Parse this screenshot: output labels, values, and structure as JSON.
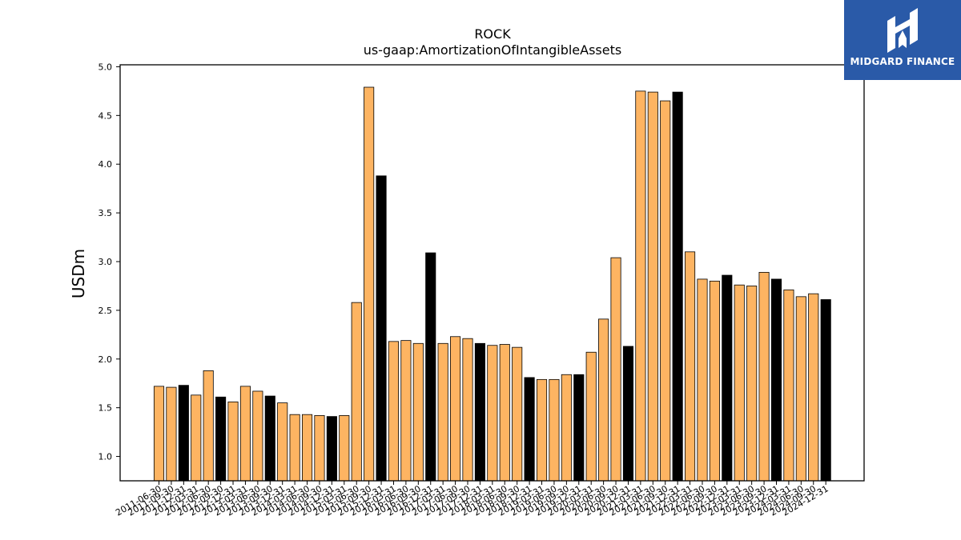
{
  "brand": {
    "name": "MIDGARD FINANCE",
    "logo_icon": "midgard-logo-icon",
    "background": "#2a5aa8"
  },
  "chart_data": {
    "type": "bar",
    "title": "ROCK",
    "subtitle": "us-gaap:AmortizationOfIntangibleAssets",
    "xlabel": "",
    "ylabel": "USDm",
    "ylim": [
      0.75,
      5.02
    ],
    "yticks": [
      "1.0",
      "1.5",
      "2.0",
      "2.5",
      "3.0",
      "3.5",
      "4.0",
      "4.5",
      "5.0"
    ],
    "grid": false,
    "colors": {
      "quarter": "#fdb462",
      "year_end": "#000000",
      "edge": "#000000"
    },
    "categories": [
      "2011-06-30",
      "2011-09-30",
      "2011-12-31",
      "2012-03-31",
      "2012-06-30",
      "2012-09-30",
      "2012-12-31",
      "2013-03-31",
      "2013-06-30",
      "2013-09-30",
      "2013-12-31",
      "2014-03-31",
      "2014-06-30",
      "2014-09-30",
      "2014-12-31",
      "2015-03-31",
      "2015-06-30",
      "2015-09-30",
      "2015-12-31",
      "2016-03-31",
      "2016-06-30",
      "2016-09-30",
      "2016-12-31",
      "2017-03-31",
      "2017-06-30",
      "2017-09-30",
      "2017-12-31",
      "2018-03-31",
      "2018-06-30",
      "2018-09-30",
      "2018-12-31",
      "2019-03-31",
      "2019-06-30",
      "2019-09-30",
      "2019-12-31",
      "2020-03-31",
      "2020-06-30",
      "2020-09-30",
      "2020-12-31",
      "2021-03-31",
      "2021-06-30",
      "2021-09-30",
      "2021-12-31",
      "2022-03-31",
      "2022-06-30",
      "2022-09-30",
      "2022-12-31",
      "2023-03-31",
      "2023-06-30",
      "2023-09-30",
      "2023-12-31",
      "2024-03-31",
      "2024-06-30",
      "2024-09-30",
      "2024-12-31"
    ],
    "tick_labels": [
      "2011-06-30",
      "2011-09-30",
      "2011-12-31",
      "2012-03-31",
      "2012-06-30",
      "2012-09-30",
      "2012-12-31",
      "2013-03-31",
      "2013-06-30",
      "2013-09-30",
      "2013-12-31",
      "2014-03-31",
      "2014-06-30",
      "2014-09-30",
      "2014-12-31",
      "2015-03-31",
      "2015-06-30",
      "2015-09-30",
      "2015-12-31",
      "2016-03-31",
      "2016-06-30",
      "2016-09-30",
      "2016-12-31",
      "2017-03-31",
      "2017-06-30",
      "2017-09-30",
      "2017-12-31",
      "2018-03-31",
      "2018-06-30",
      "2018-09-30",
      "2018-12-31",
      "2019-03-31",
      "2019-06-30",
      "2019-09-30",
      "2019-12-31",
      "2020-03-31",
      "2020-06-30",
      "2020-09-30",
      "2020-12-31",
      "2021-03-31",
      "2021-06-30",
      "2021-09-30",
      "2021-12-31",
      "2022-03-31",
      "2022-06-30",
      "2022-09-30",
      "2022-12-31",
      "2023-03-31",
      "2023-06-30",
      "2023-09-30",
      "2023-12-31",
      "2024-03-31",
      "2024-06-30",
      "2024-09-30",
      "2024-12-31"
    ],
    "values": [
      1.72,
      1.71,
      1.73,
      1.63,
      1.88,
      1.61,
      1.56,
      1.72,
      1.67,
      1.62,
      1.55,
      1.43,
      1.43,
      1.42,
      1.41,
      1.42,
      2.58,
      4.79,
      3.88,
      2.18,
      2.19,
      2.16,
      3.09,
      2.16,
      2.23,
      2.21,
      2.16,
      2.14,
      2.15,
      2.12,
      1.81,
      1.79,
      1.79,
      1.84,
      1.84,
      2.07,
      2.41,
      3.04,
      2.13,
      4.75,
      4.74,
      4.65,
      4.74,
      3.1,
      2.82,
      2.8,
      2.86,
      2.76,
      2.75,
      2.89,
      2.82,
      2.71,
      2.64,
      2.67,
      2.61
    ],
    "year_end": [
      false,
      false,
      true,
      false,
      false,
      true,
      false,
      false,
      false,
      true,
      false,
      false,
      false,
      false,
      true,
      false,
      false,
      false,
      true,
      false,
      false,
      false,
      true,
      false,
      false,
      false,
      true,
      false,
      false,
      false,
      true,
      false,
      false,
      false,
      true,
      false,
      false,
      false,
      true,
      false,
      false,
      false,
      true,
      false,
      false,
      false,
      true,
      false,
      false,
      false,
      true,
      false,
      false,
      false,
      true
    ]
  }
}
